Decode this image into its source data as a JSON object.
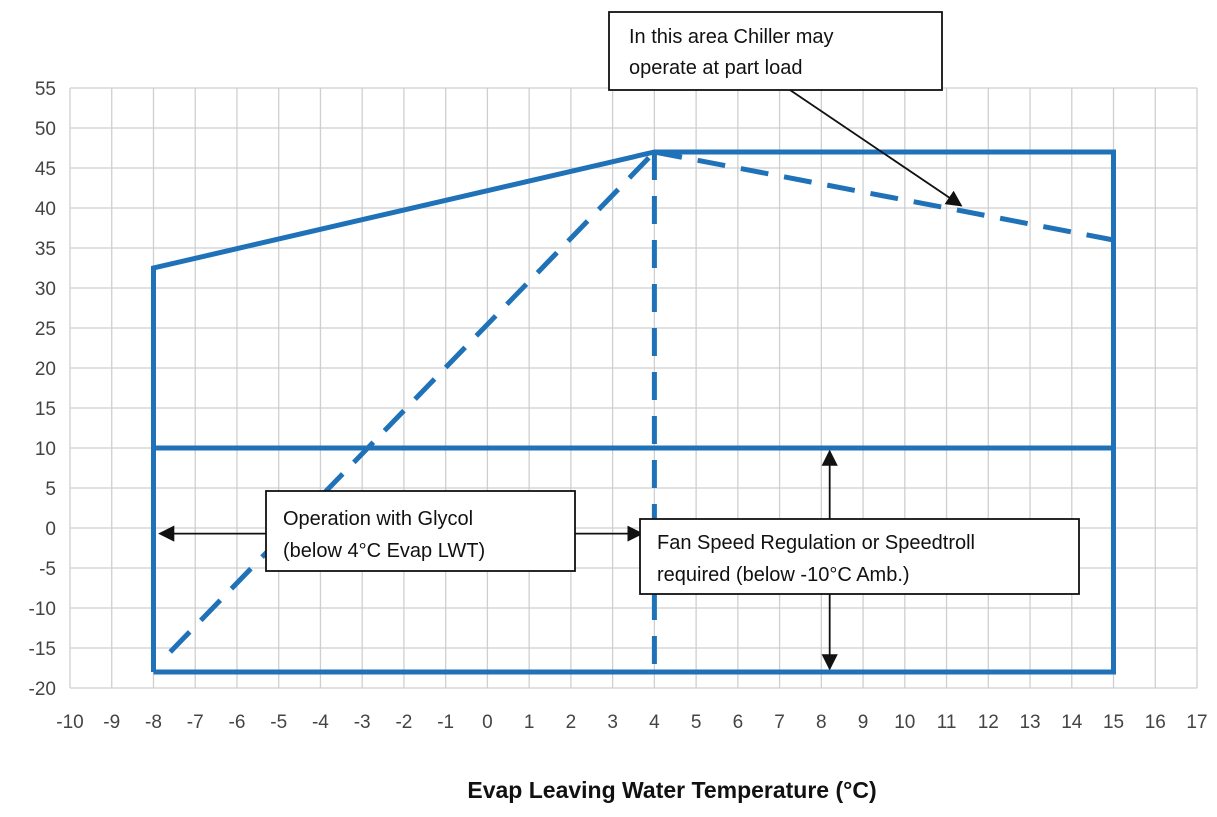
{
  "chart_data": {
    "type": "line",
    "title": "",
    "xlabel": "Evap Leaving Water Temperature (°C)",
    "ylabel": "",
    "xlim": [
      -10,
      17
    ],
    "ylim": [
      -20,
      55
    ],
    "x_ticks": [
      -10,
      -9,
      -8,
      -7,
      -6,
      -5,
      -4,
      -3,
      -2,
      -1,
      0,
      1,
      2,
      3,
      4,
      5,
      6,
      7,
      8,
      9,
      10,
      11,
      12,
      13,
      14,
      15,
      16,
      17
    ],
    "y_ticks": [
      -20,
      -15,
      -10,
      -5,
      0,
      5,
      10,
      15,
      20,
      25,
      30,
      35,
      40,
      45,
      50,
      55
    ],
    "grid": true,
    "series_color": "#1f72b8",
    "series": [
      {
        "style": "solid",
        "points": [
          [
            -8,
            -18
          ],
          [
            -8,
            32.5
          ],
          [
            4,
            47
          ],
          [
            15,
            47
          ],
          [
            15,
            -18
          ],
          [
            -8,
            -18
          ]
        ]
      },
      {
        "style": "solid",
        "points": [
          [
            -8,
            10
          ],
          [
            15,
            10
          ]
        ]
      },
      {
        "style": "dashed",
        "points": [
          [
            -7.6,
            -15.5
          ],
          [
            4,
            47
          ]
        ]
      },
      {
        "style": "dashed",
        "points": [
          [
            4,
            47
          ],
          [
            4,
            -18
          ]
        ]
      },
      {
        "style": "dashed",
        "points": [
          [
            4,
            47
          ],
          [
            11,
            40
          ],
          [
            15,
            36
          ]
        ]
      }
    ],
    "annotations": [
      {
        "id": "part-load",
        "lines": [
          "In this area Chiller may",
          "operate at part load"
        ],
        "arrow": "to-curve"
      },
      {
        "id": "glycol",
        "lines": [
          "Operation with Glycol",
          "(below 4°C Evap LWT)"
        ],
        "arrow": "horizontal-double"
      },
      {
        "id": "fan-speed",
        "lines": [
          "Fan Speed Regulation or Speedtroll",
          "required (below -10°C Amb.)"
        ],
        "arrow": "vertical-double"
      }
    ]
  }
}
